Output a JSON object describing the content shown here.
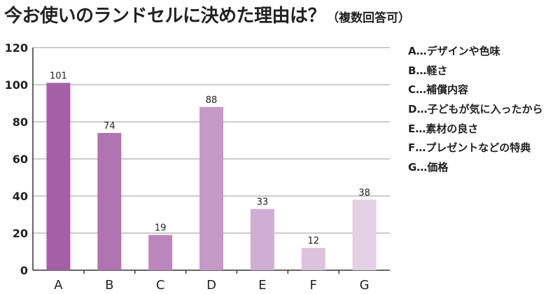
{
  "title": "今お使いのランドセルに決めた理由は？",
  "subtitle": "（複数回答可）",
  "legend": [
    "A…デザインや色味",
    "B…軽さ",
    "C…補償内容",
    "D…子どもが気に入ったから",
    "E…素材の良さ",
    "F…プレゼントなどの特典",
    "G…価格"
  ],
  "chart_data": {
    "type": "bar",
    "title": "今お使いのランドセルに決めた理由は？（複数回答可）",
    "categories": [
      "A",
      "B",
      "C",
      "D",
      "E",
      "F",
      "G"
    ],
    "values": [
      101,
      74,
      19,
      88,
      33,
      12,
      38
    ],
    "colors": [
      "#a55fa7",
      "#b074b2",
      "#bb87be",
      "#c59ac7",
      "#d0aed3",
      "#dbc3de",
      "#e3d1e6"
    ],
    "ylim": [
      0,
      120
    ],
    "yticks": [
      0,
      20,
      40,
      60,
      80,
      100,
      120
    ],
    "grid": true,
    "legend_placement": "right",
    "xlabel": "",
    "ylabel": ""
  }
}
